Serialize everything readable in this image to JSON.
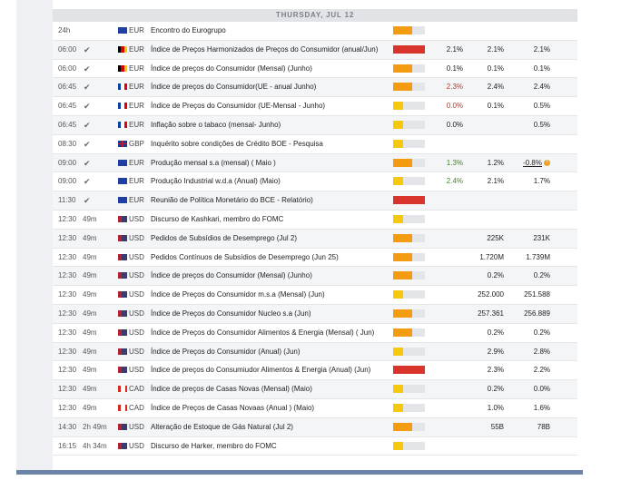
{
  "calendar": {
    "date": "THURSDAY, JUL 12",
    "colors": {
      "high": "#d9342b",
      "medium": "#f39c12",
      "low": "#f6c90e",
      "empty": "#e4e5e8"
    },
    "rows": [
      {
        "time": "24h",
        "countdown": "",
        "check": false,
        "flag": "eu",
        "currency": "EUR",
        "event": "Encontro do Eurogrupo",
        "impact": "medium",
        "actual": "",
        "actual_color": "",
        "forecast": "",
        "previous": ""
      },
      {
        "time": "06:00",
        "countdown": "",
        "check": true,
        "flag": "de",
        "currency": "EUR",
        "event": "Índice de Preços Harmonizados de Preços do Consumidor (anual/Jun)",
        "impact": "high",
        "actual": "2.1%",
        "actual_color": "",
        "forecast": "2.1%",
        "previous": "2.1%"
      },
      {
        "time": "06:00",
        "countdown": "",
        "check": true,
        "flag": "de",
        "currency": "EUR",
        "event": "Índice de preços do Consumidor (Mensal)  (Junho)",
        "impact": "medium",
        "actual": "0.1%",
        "actual_color": "",
        "forecast": "0.1%",
        "previous": "0.1%"
      },
      {
        "time": "06:45",
        "countdown": "",
        "check": true,
        "flag": "fr",
        "currency": "EUR",
        "event": "Índice de preços do Consumidor(UE - anual Junho)",
        "impact": "medium",
        "actual": "2.3%",
        "actual_color": "red",
        "forecast": "2.4%",
        "previous": "2.4%"
      },
      {
        "time": "06:45",
        "countdown": "",
        "check": true,
        "flag": "fr",
        "currency": "EUR",
        "event": "Índice de Preços do Consumidor (UE-Mensal - Junho)",
        "impact": "low",
        "actual": "0.0%",
        "actual_color": "red",
        "forecast": "0.1%",
        "previous": "0.5%"
      },
      {
        "time": "06:45",
        "countdown": "",
        "check": true,
        "flag": "fr",
        "currency": "EUR",
        "event": "Inflação sobre o tabaco (mensal- Junho)",
        "impact": "low",
        "actual": "0.0%",
        "actual_color": "",
        "forecast": "",
        "previous": "0.5%"
      },
      {
        "time": "08:30",
        "countdown": "",
        "check": true,
        "flag": "gb",
        "currency": "GBP",
        "event": "Inquérito sobre condições de Crédito BOE - Pesquisa",
        "impact": "low",
        "actual": "",
        "actual_color": "",
        "forecast": "",
        "previous": ""
      },
      {
        "time": "09:00",
        "countdown": "",
        "check": true,
        "flag": "eu",
        "currency": "EUR",
        "event": "Produção mensal s.a (mensal) (   Maio   )",
        "impact": "medium",
        "actual": "1.3%",
        "actual_color": "green",
        "forecast": "1.2%",
        "previous": "-0.8%",
        "previous_warn": true
      },
      {
        "time": "09:00",
        "countdown": "",
        "check": true,
        "flag": "eu",
        "currency": "EUR",
        "event": "Produção Industrial  w.d.a (Anual) (Maio)",
        "impact": "low",
        "actual": "2.4%",
        "actual_color": "green",
        "forecast": "2.1%",
        "previous": "1.7%"
      },
      {
        "time": "11:30",
        "countdown": "",
        "check": true,
        "flag": "eu",
        "currency": "EUR",
        "event": "Reunião de Política Monetário  do BCE - Relatório)",
        "impact": "high",
        "actual": "",
        "actual_color": "",
        "forecast": "",
        "previous": ""
      },
      {
        "time": "12:30",
        "countdown": "49m",
        "check": false,
        "flag": "us",
        "currency": "USD",
        "event": "Discurso de Kashkari, membro do FOMC",
        "impact": "low",
        "actual": "",
        "actual_color": "",
        "forecast": "",
        "previous": ""
      },
      {
        "time": "12:30",
        "countdown": "49m",
        "check": false,
        "flag": "us",
        "currency": "USD",
        "event": "Pedidos de Subsídios de Desemprego (Jul 2)",
        "impact": "medium",
        "actual": "",
        "actual_color": "",
        "forecast": "225K",
        "previous": "231K"
      },
      {
        "time": "12:30",
        "countdown": "49m",
        "check": false,
        "flag": "us",
        "currency": "USD",
        "event": "Pedidos Contínuos de Subsídios de Desemprego (Jun 25)",
        "impact": "medium",
        "actual": "",
        "actual_color": "",
        "forecast": "1.720M",
        "previous": "1.739M"
      },
      {
        "time": "12:30",
        "countdown": "49m",
        "check": false,
        "flag": "us",
        "currency": "USD",
        "event": "Índice de preços do Consumidor (Mensal) (Junho)",
        "impact": "medium",
        "actual": "",
        "actual_color": "",
        "forecast": "0.2%",
        "previous": "0.2%"
      },
      {
        "time": "12:30",
        "countdown": "49m",
        "check": false,
        "flag": "us",
        "currency": "USD",
        "event": "Índice de Preços do Consumidor m.s.a (Mensal) (Jun)",
        "impact": "low",
        "actual": "",
        "actual_color": "",
        "forecast": "252.000",
        "previous": "251.588"
      },
      {
        "time": "12:30",
        "countdown": "49m",
        "check": false,
        "flag": "us",
        "currency": "USD",
        "event": "Índice de Preços do Consumidor Nucleo s.a (Jun)",
        "impact": "medium",
        "actual": "",
        "actual_color": "",
        "forecast": "257.361",
        "previous": "256.889"
      },
      {
        "time": "12:30",
        "countdown": "49m",
        "check": false,
        "flag": "us",
        "currency": "USD",
        "event": "Índice de Preços do Consumidor Alimentos & Energia (Mensal) ( Jun)",
        "impact": "medium",
        "actual": "",
        "actual_color": "",
        "forecast": "0.2%",
        "previous": "0.2%"
      },
      {
        "time": "12:30",
        "countdown": "49m",
        "check": false,
        "flag": "us",
        "currency": "USD",
        "event": "Índice de Preços do Consumidor (Anual) (Jun)",
        "impact": "low",
        "actual": "",
        "actual_color": "",
        "forecast": "2.9%",
        "previous": "2.8%"
      },
      {
        "time": "12:30",
        "countdown": "49m",
        "check": false,
        "flag": "us",
        "currency": "USD",
        "event": "Índice de preços do Consumiudor Alimentos & Energia (Anual) (Jun)",
        "impact": "high",
        "actual": "",
        "actual_color": "",
        "forecast": "2.3%",
        "previous": "2.2%"
      },
      {
        "time": "12:30",
        "countdown": "49m",
        "check": false,
        "flag": "ca",
        "currency": "CAD",
        "event": "Índice de preços de Casas Novas (Mensal) (Maio)",
        "impact": "low",
        "actual": "",
        "actual_color": "",
        "forecast": "0.2%",
        "previous": "0.0%"
      },
      {
        "time": "12:30",
        "countdown": "49m",
        "check": false,
        "flag": "ca",
        "currency": "CAD",
        "event": "Índice de Preços de Casas Novaas (Anual ) (Maio)",
        "impact": "low",
        "actual": "",
        "actual_color": "",
        "forecast": "1.0%",
        "previous": "1.6%"
      },
      {
        "time": "14:30",
        "countdown": "2h 49m",
        "check": false,
        "flag": "us",
        "currency": "USD",
        "event": "Alteração de Estoque de Gás Natural (Jul 2)",
        "impact": "medium",
        "actual": "",
        "actual_color": "",
        "forecast": "55B",
        "previous": "78B"
      },
      {
        "time": "16:15",
        "countdown": "4h 34m",
        "check": false,
        "flag": "us",
        "currency": "USD",
        "event": "Discurso de Harker, membro do FOMC",
        "impact": "low",
        "actual": "",
        "actual_color": "",
        "forecast": "",
        "previous": ""
      }
    ]
  }
}
